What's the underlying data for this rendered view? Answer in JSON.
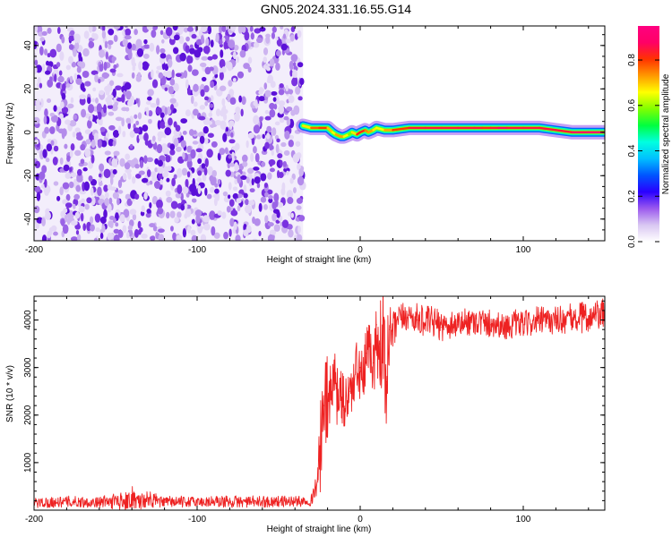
{
  "title": "GN05.2024.331.16.55.G14",
  "chart_data": [
    {
      "type": "heatmap",
      "title": "GN05.2024.331.16.55.G14",
      "xlabel": "Height of straight line (km)",
      "ylabel": "Frequency (Hz)",
      "xlim": [
        -200,
        150
      ],
      "ylim": [
        -50,
        49
      ],
      "xticks": [
        -200,
        -100,
        0,
        100
      ],
      "xtick_labels": [
        "-200",
        "-100",
        "0",
        "100"
      ],
      "yticks": [
        -40,
        -20,
        0,
        20,
        40
      ],
      "ytick_labels": [
        "-40",
        "-20",
        "0",
        "20",
        "40"
      ],
      "noise_region_x": [
        -200,
        -35
      ],
      "signal_track": {
        "x": [
          -35,
          -30,
          -25,
          -20,
          -17,
          -15,
          -12,
          -10,
          -7,
          -5,
          -2,
          0,
          3,
          5,
          8,
          10,
          15,
          20,
          30,
          40,
          50,
          60,
          70,
          75,
          80,
          85,
          90,
          100,
          110,
          120,
          130,
          140,
          150
        ],
        "freq_hz": [
          3,
          2,
          2,
          2,
          0,
          -1,
          -2,
          -2,
          -1,
          0,
          -1,
          0,
          1,
          0,
          1,
          2,
          1,
          1,
          2,
          2,
          2,
          2,
          2,
          2,
          2,
          2,
          2,
          2,
          2,
          1,
          0,
          0,
          0
        ],
        "amplitude": [
          0.6,
          0.75,
          0.8,
          0.8,
          0.6,
          0.7,
          0.75,
          0.7,
          0.6,
          0.55,
          0.8,
          0.85,
          0.8,
          0.7,
          0.75,
          0.6,
          0.7,
          0.75,
          0.85,
          0.85,
          0.85,
          0.85,
          0.85,
          0.85,
          0.8,
          0.9,
          0.85,
          0.85,
          0.85,
          0.85,
          0.85,
          0.9,
          0.9
        ]
      },
      "colorbar": {
        "label": "Normalized spectral amplitude",
        "range": [
          0.0,
          0.95
        ],
        "ticks": [
          0.0,
          0.2,
          0.4,
          0.6,
          0.8
        ],
        "tick_labels": [
          "0.0",
          "0.2",
          "0.4",
          "0.6",
          "0.8"
        ],
        "colors": [
          "#ffffff",
          "#d9c7f2",
          "#9b59ee",
          "#2a00ff",
          "#0055ff",
          "#00bfff",
          "#00ffe0",
          "#00ff40",
          "#80ff00",
          "#ffff00",
          "#ff9900",
          "#ff3300",
          "#ff0066",
          "#ff0080"
        ]
      }
    },
    {
      "type": "line",
      "xlabel": "Height of straight line (km)",
      "ylabel": "SNR (10 * v/v)",
      "xlim": [
        -200,
        150
      ],
      "ylim": [
        0,
        4500
      ],
      "xticks": [
        -200,
        -100,
        0,
        100
      ],
      "xtick_labels": [
        "-200",
        "-100",
        "0",
        "100"
      ],
      "yticks": [
        1000,
        2000,
        3000,
        4000
      ],
      "ytick_labels": [
        "1000",
        "2000",
        "3000",
        "4000"
      ],
      "color": "#ee2222",
      "series": [
        {
          "x": [
            -200,
            -180,
            -160,
            -140,
            -120,
            -100,
            -80,
            -60,
            -40,
            -30,
            -26,
            -24,
            -22,
            -20,
            -18,
            -16,
            -14,
            -12,
            -10,
            -8,
            -6,
            -4,
            -2,
            0,
            2,
            4,
            6,
            8,
            10,
            12,
            14,
            16,
            18,
            20,
            22,
            25,
            30,
            35,
            40,
            45,
            50,
            60,
            70,
            80,
            90,
            100,
            110,
            120,
            130,
            140,
            150
          ],
          "y": [
            150,
            170,
            160,
            180,
            165,
            170,
            165,
            170,
            180,
            200,
            600,
            1200,
            2200,
            2000,
            2600,
            2900,
            2500,
            2400,
            2100,
            2300,
            2500,
            2700,
            2900,
            3000,
            2600,
            3300,
            3500,
            3100,
            3900,
            3500,
            3600,
            2700,
            3800,
            3700,
            3900,
            4000,
            4100,
            4000,
            3950,
            3900,
            3850,
            3900,
            3950,
            3900,
            3850,
            3900,
            3950,
            3950,
            4000,
            4000,
            4050
          ],
          "y_band_low": [
            40,
            60,
            50,
            60,
            60,
            60,
            55,
            60,
            70,
            100,
            300,
            700,
            1300,
            1300,
            1800,
            1900,
            1700,
            1800,
            1700,
            1900,
            2000,
            2000,
            2100,
            2300,
            1900,
            2400,
            2700,
            2200,
            3000,
            2200,
            1300,
            1600,
            2800,
            3200,
            3500,
            3700,
            3800,
            3700,
            3650,
            3650,
            3600,
            3650,
            3700,
            3650,
            3600,
            3650,
            3700,
            3700,
            3750,
            3750,
            3800
          ],
          "y_band_high": [
            290,
            300,
            280,
            500,
            300,
            300,
            310,
            300,
            320,
            350,
            1100,
            2500,
            2900,
            3500,
            3200,
            3000,
            2900,
            3000,
            2900,
            3000,
            3000,
            3200,
            3600,
            3500,
            3500,
            3900,
            4200,
            3700,
            4300,
            4200,
            4300,
            4200,
            4300,
            4200,
            4300,
            4350,
            4400,
            4350,
            4300,
            4300,
            4250,
            4250,
            4300,
            4250,
            4200,
            4250,
            4300,
            4300,
            4350,
            4400,
            4450
          ]
        }
      ]
    }
  ]
}
